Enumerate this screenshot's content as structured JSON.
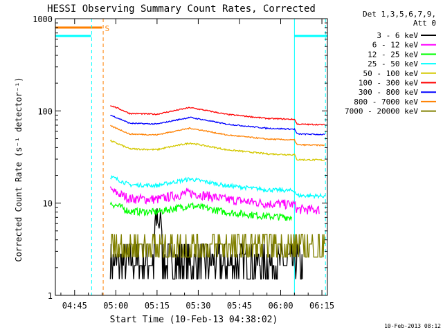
{
  "chart_data": {
    "type": "line",
    "title": "HESSI Observing Summary Count Rates, Corrected",
    "xlabel": "Start Time (10-Feb-13 04:38:02)",
    "ylabel": "Corrected Count Rate (s⁻¹ detector⁻¹)",
    "yscale": "log",
    "ylim": [
      1,
      1000
    ],
    "xlim_minutes": [
      38,
      137
    ],
    "x_ticks": [
      {
        "minute": 45,
        "label": "04:45"
      },
      {
        "minute": 60,
        "label": "05:00"
      },
      {
        "minute": 75,
        "label": "05:15"
      },
      {
        "minute": 90,
        "label": "05:30"
      },
      {
        "minute": 105,
        "label": "05:45"
      },
      {
        "minute": 120,
        "label": "06:00"
      },
      {
        "minute": 135,
        "label": "06:15"
      }
    ],
    "y_ticks": [
      {
        "value": 1,
        "label": "1"
      },
      {
        "value": 10,
        "label": "10"
      },
      {
        "value": 100,
        "label": "100"
      },
      {
        "value": 1000,
        "label": "1000"
      }
    ],
    "grid": false,
    "legend_header": [
      "Det 1,3,5,6,7,9,",
      "Att 0"
    ],
    "legend_position": "top-right",
    "series": [
      {
        "name": "3 - 6 keV",
        "color": "#000000",
        "x_start": 58,
        "x_end": 128,
        "base": 2.6,
        "noise": 0.45
      },
      {
        "name": "6 - 12 keV",
        "color": "#ff00ff",
        "x_start": 58,
        "x_end": 134,
        "base": 11,
        "noise": 0.12
      },
      {
        "name": "12 - 25 keV",
        "color": "#00ff00",
        "x_start": 58,
        "x_end": 124,
        "base": 8,
        "noise": 0.09
      },
      {
        "name": "25 - 50 keV",
        "color": "#00ffff",
        "x_start": 58,
        "x_end": 136,
        "base": 15.5,
        "noise": 0.05
      },
      {
        "name": "50 - 100 keV",
        "color": "#d4c800",
        "x_start": 58,
        "x_end": 136,
        "base": 38,
        "noise": 0.02
      },
      {
        "name": "100 - 300 keV",
        "color": "#ff0000",
        "x_start": 58,
        "x_end": 136,
        "base": 92,
        "noise": 0.015
      },
      {
        "name": "300 - 800 keV",
        "color": "#0000ff",
        "x_start": 58,
        "x_end": 136,
        "base": 72,
        "noise": 0.015
      },
      {
        "name": "800 - 7000 keV",
        "color": "#ff8000",
        "x_start": 58,
        "x_end": 136,
        "base": 55,
        "noise": 0.015
      },
      {
        "name": "7000 - 20000 keV",
        "color": "#808000",
        "x_start": 58,
        "x_end": 136,
        "base": 3.2,
        "noise": 0.12
      }
    ],
    "profile": [
      {
        "minute": 58,
        "factor": 1.25
      },
      {
        "minute": 65,
        "factor": 1.02
      },
      {
        "minute": 75,
        "factor": 1.0
      },
      {
        "minute": 87,
        "factor": 1.18
      },
      {
        "minute": 100,
        "factor": 1.0
      },
      {
        "minute": 115,
        "factor": 0.9
      },
      {
        "minute": 125,
        "factor": 0.88
      },
      {
        "minute": 126,
        "factor": 0.78
      },
      {
        "minute": 136,
        "factor": 0.77
      }
    ],
    "level_markers": [
      {
        "name": "attenuator-level",
        "color": "#00ffff",
        "value": 650,
        "segments": [
          [
            38,
            51
          ],
          [
            125,
            137
          ]
        ]
      },
      {
        "name": "saa-level",
        "color": "#ff8000",
        "value": 800,
        "segments": [
          [
            38,
            55
          ]
        ],
        "label": "S"
      }
    ],
    "vertical_markers": [
      {
        "name": "night-start",
        "minute": 51.2,
        "color": "#00ffff",
        "style": "dashed"
      },
      {
        "name": "saa-end",
        "minute": 55.4,
        "color": "#ff8000",
        "style": "dashed"
      },
      {
        "name": "day-start",
        "minute": 125,
        "color": "#00ffff",
        "style": "solid"
      },
      {
        "name": "night-end",
        "minute": 136.3,
        "color": "#00ffff",
        "style": "dashed"
      }
    ],
    "timestamp": "10-Feb-2013 08:12"
  }
}
